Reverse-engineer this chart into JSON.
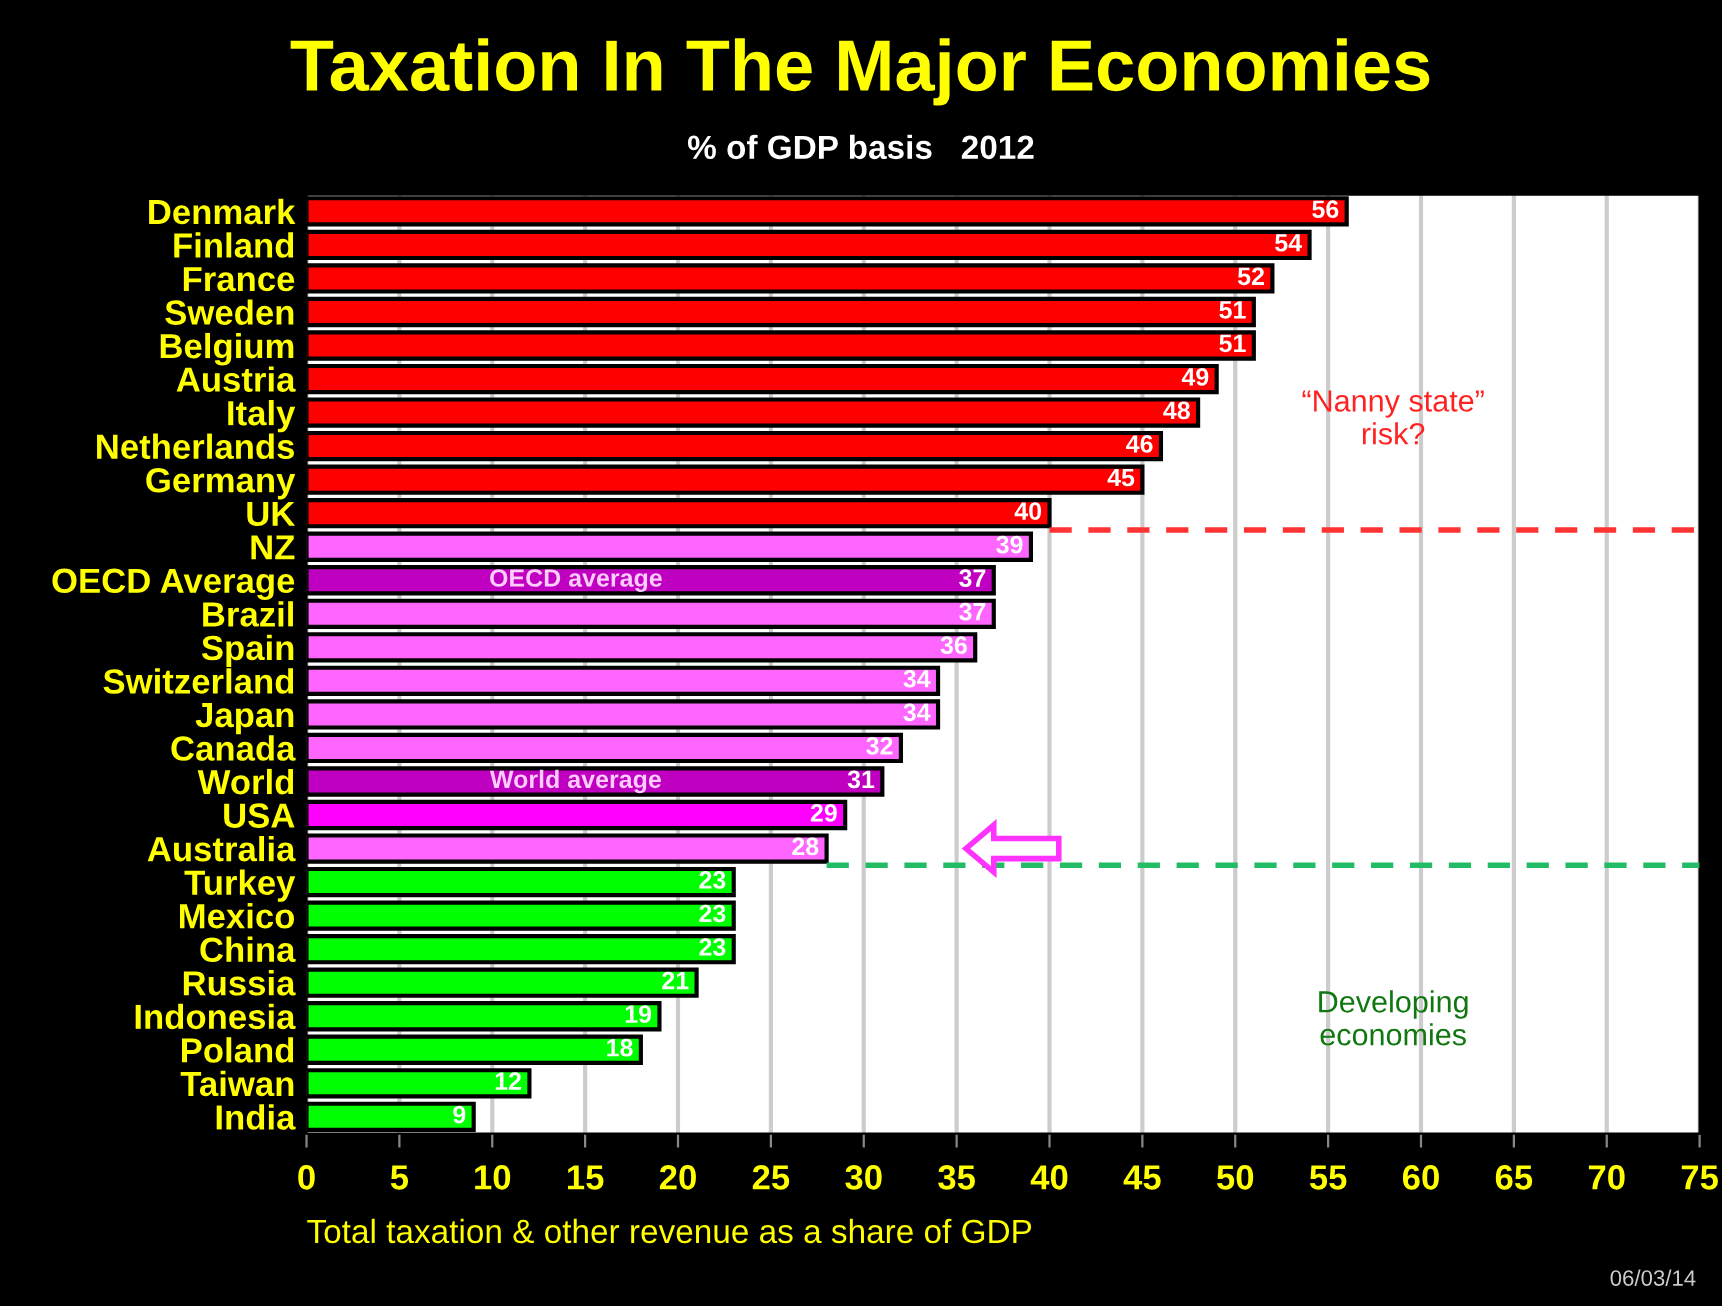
{
  "chart_data": {
    "type": "bar",
    "orientation": "horizontal",
    "title": "Taxation In The Major Economies",
    "subtitle": "% of GDP basis   2012",
    "xlabel": "Total taxation & other revenue as a share of GDP",
    "categories": [
      "Denmark",
      "Finland",
      "France",
      "Sweden",
      "Belgium",
      "Austria",
      "Italy",
      "Netherlands",
      "Germany",
      "UK",
      "NZ",
      "OECD Average",
      "Brazil",
      "Spain",
      "Switzerland",
      "Japan",
      "Canada",
      "World",
      "USA",
      "Australia",
      "Turkey",
      "Mexico",
      "China",
      "Russia",
      "Indonesia",
      "Poland",
      "Taiwan",
      "India"
    ],
    "values": [
      56,
      54,
      52,
      51,
      51,
      49,
      48,
      46,
      45,
      40,
      39,
      37,
      37,
      36,
      34,
      34,
      32,
      31,
      29,
      28,
      23,
      23,
      23,
      21,
      19,
      18,
      12,
      9
    ],
    "colors": [
      "#ff0000",
      "#ff0000",
      "#ff0000",
      "#ff0000",
      "#ff0000",
      "#ff0000",
      "#ff0000",
      "#ff0000",
      "#ff0000",
      "#ff0000",
      "#ff66ff",
      "#c000c0",
      "#ff66ff",
      "#ff66ff",
      "#ff66ff",
      "#ff66ff",
      "#ff66ff",
      "#c000c0",
      "#ff00ff",
      "#ff66ff",
      "#00ff00",
      "#00ff00",
      "#00ff00",
      "#00ff00",
      "#00ff00",
      "#00ff00",
      "#00ff00",
      "#00ff00"
    ],
    "data_labels": true,
    "xlim": [
      0,
      75
    ],
    "xticks": [
      0,
      5,
      10,
      15,
      20,
      25,
      30,
      35,
      40,
      45,
      50,
      55,
      60,
      65,
      70,
      75
    ],
    "grid": "x",
    "legend": false,
    "ref_lines": [
      {
        "axis": "y",
        "value": "UK",
        "color": "#ff3333",
        "line_style": "dashed"
      },
      {
        "axis": "y",
        "value": "Australia",
        "color": "#22bb66",
        "line_style": "dashed"
      }
    ],
    "annotations": [
      "“Nanny state”\nrisk?",
      "Developing\neconomies",
      "06/03/14",
      {
        "text": "OECD average",
        "x": 14.5,
        "y": "OECD Average"
      },
      {
        "text": "World average",
        "x": 14.5,
        "y": "World"
      }
    ]
  }
}
